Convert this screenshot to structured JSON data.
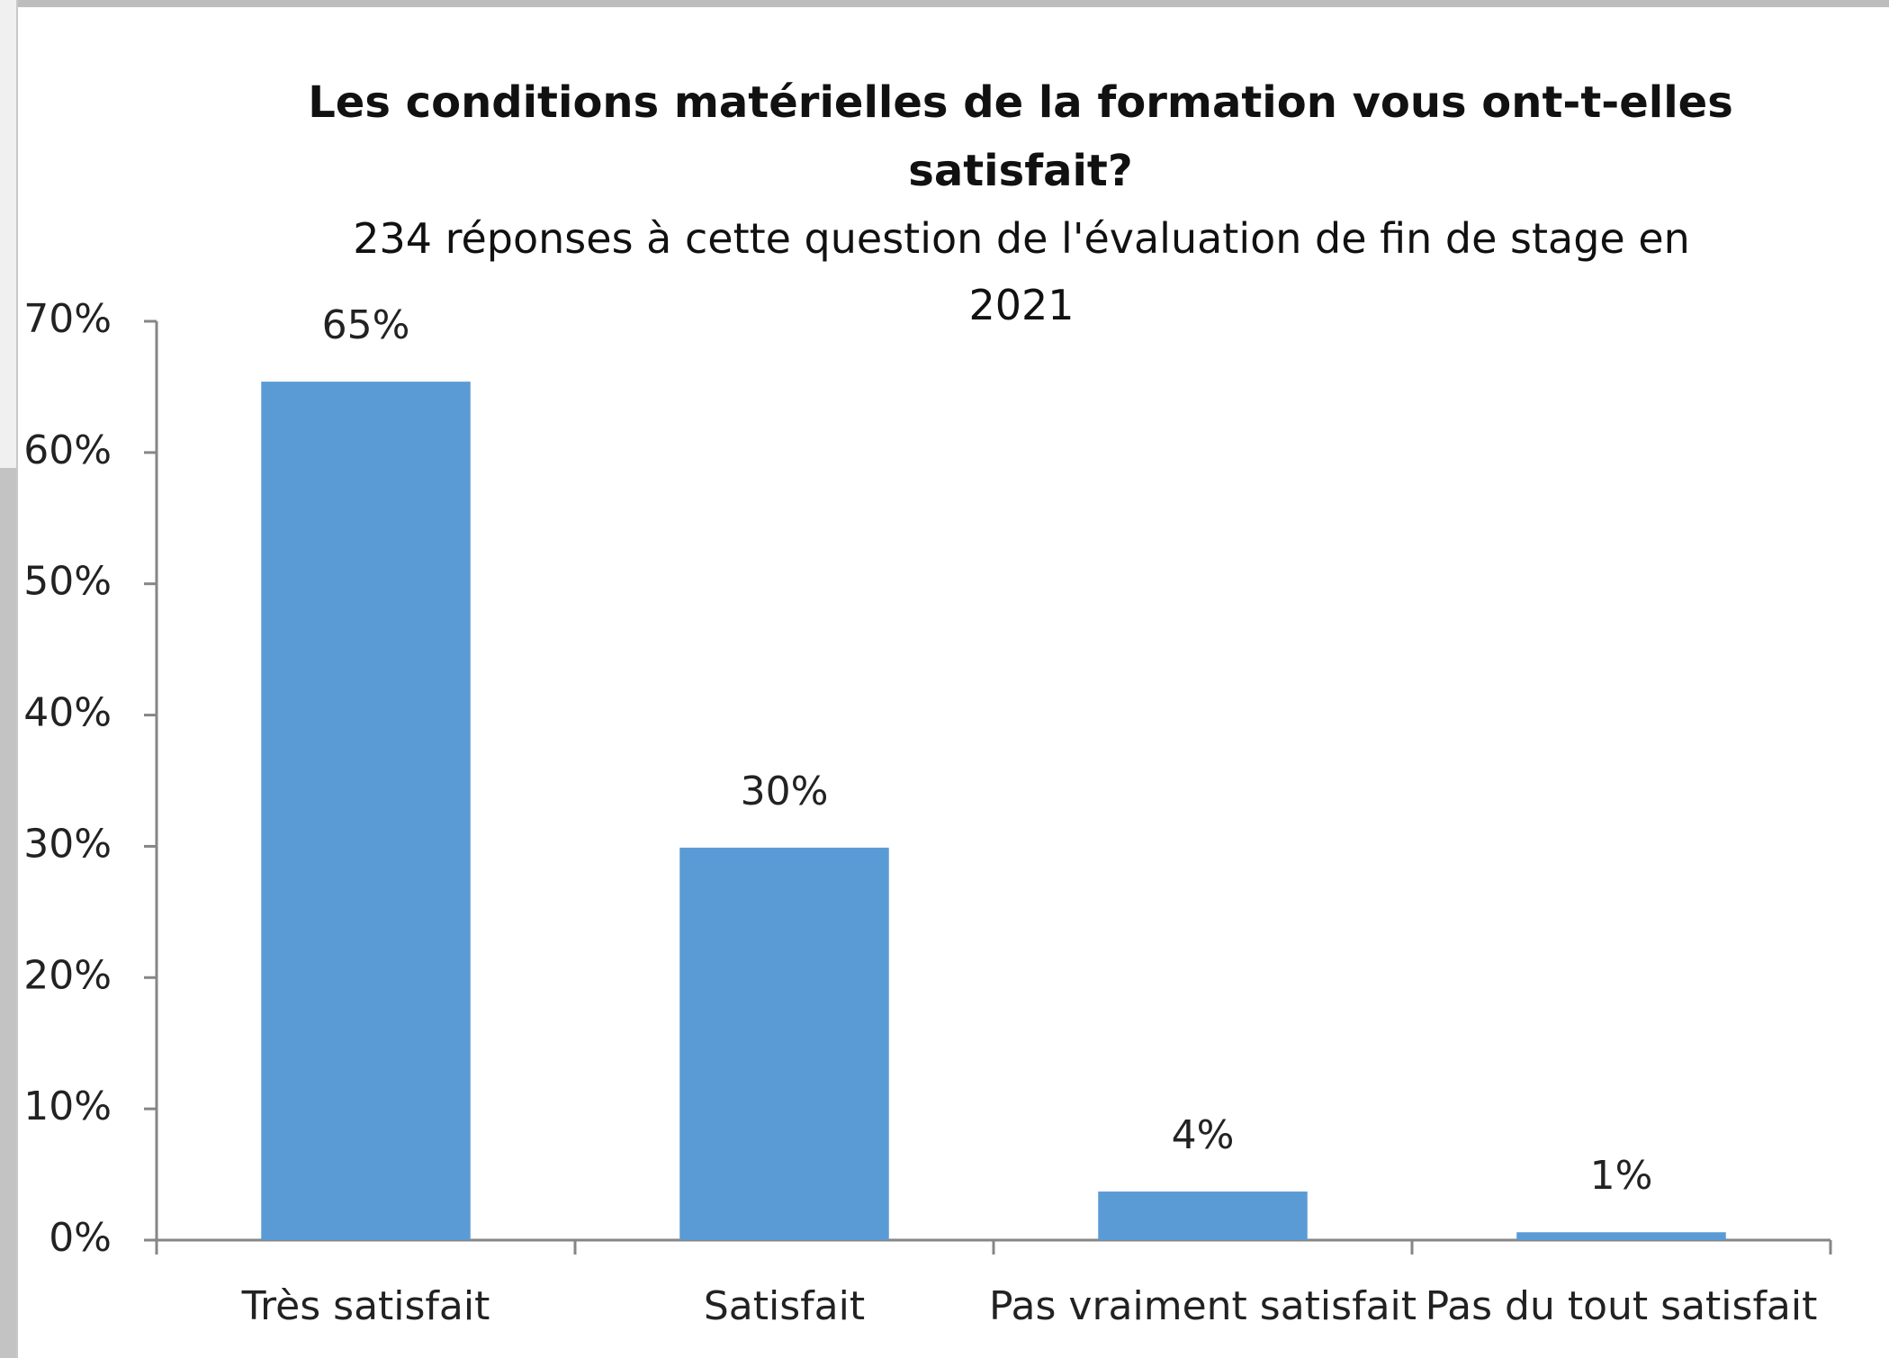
{
  "chart_data": {
    "type": "bar",
    "title": "Les conditions matérielles de la formation vous ont-t-elles satisfait?",
    "subtitle": "234 réponses à cette question de l'évaluation de fin de stage en 2021",
    "categories": [
      "Très satisfait",
      "Satisfait",
      "Pas vraiment satisfait",
      "Pas du tout satisfait"
    ],
    "values": [
      65.4,
      29.9,
      3.7,
      0.6
    ],
    "value_labels": [
      "65%",
      "30%",
      "4%",
      "1%"
    ],
    "color": "#5b9bd5",
    "ylim": [
      0,
      70
    ],
    "yticks": [
      {
        "value": 0,
        "label": "0%"
      },
      {
        "value": 10,
        "label": "10%"
      },
      {
        "value": 20,
        "label": "20%"
      },
      {
        "value": 30,
        "label": "30%"
      },
      {
        "value": 40,
        "label": "40%"
      },
      {
        "value": 50,
        "label": "50%"
      },
      {
        "value": 60,
        "label": "60%"
      },
      {
        "value": 70,
        "label": "70%"
      }
    ],
    "grid": false
  }
}
